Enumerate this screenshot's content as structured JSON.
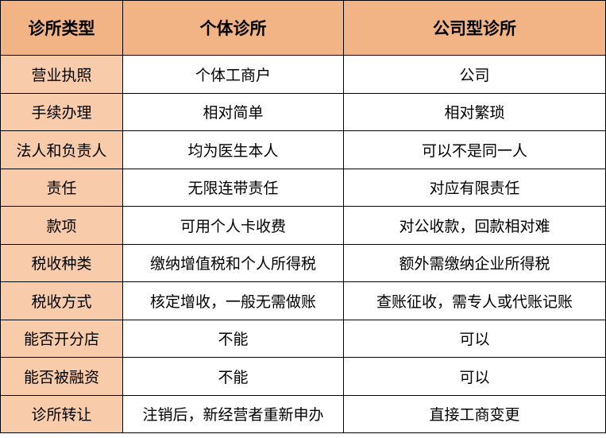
{
  "headers": [
    "诊所类型",
    "个体诊所",
    "公司型诊所"
  ],
  "rows": [
    [
      "营业执照",
      "个体工商户",
      "公司"
    ],
    [
      "手续办理",
      "相对简单",
      "相对繁琐"
    ],
    [
      "法人和负责人",
      "均为医生本人",
      "可以不是同一人"
    ],
    [
      "责任",
      "无限连带责任",
      "对应有限责任"
    ],
    [
      "款项",
      "可用个人卡收费",
      "对公收款，回款相对难"
    ],
    [
      "税收种类",
      "缴纳增值税和个人所得税",
      "额外需缴纳企业所得税"
    ],
    [
      "税收方式",
      "核定增收，一般无需做账",
      "查账征收，需专人或代账记账"
    ],
    [
      "能否开分店",
      "不能",
      "可以"
    ],
    [
      "能否被融资",
      "不能",
      "可以"
    ],
    [
      "诊所转让",
      "注销后，新经营者重新申办",
      "直接工商变更"
    ]
  ],
  "colors": {
    "header": "#F2B385",
    "first_column": "#F8CBAA",
    "border": "#000000"
  }
}
